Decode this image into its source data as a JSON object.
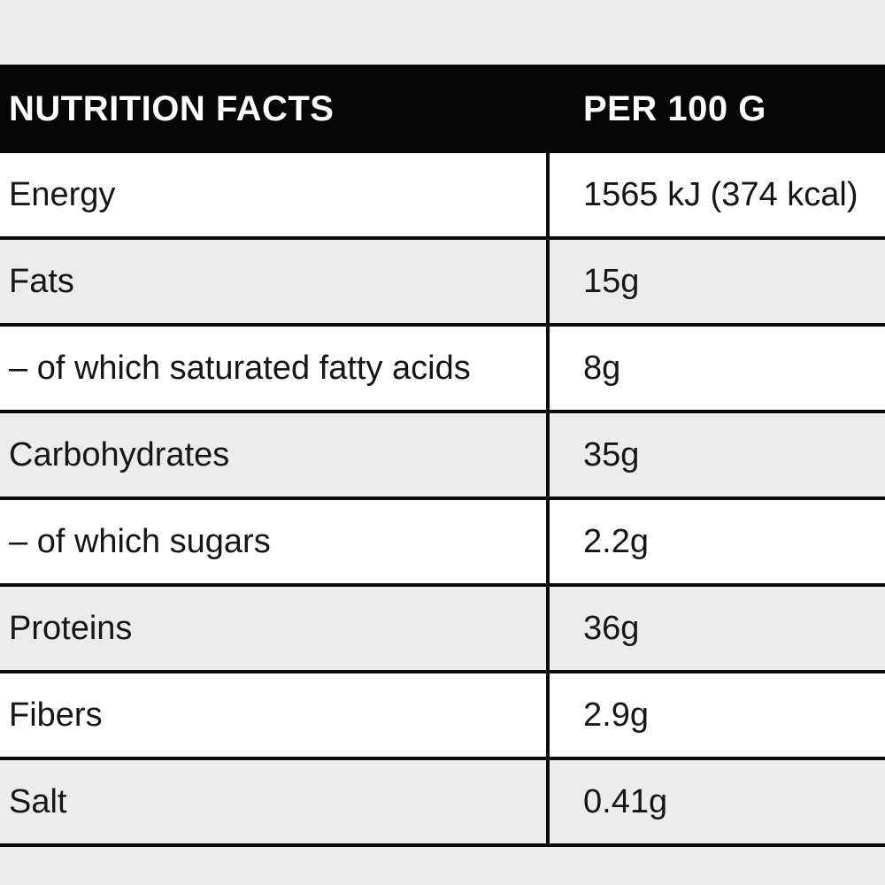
{
  "table": {
    "header": {
      "title": "NUTRITION FACTS",
      "column": "PER 100 G"
    },
    "rows": [
      {
        "label": "Energy",
        "value": "1565 kJ (374 kcal)"
      },
      {
        "label": "Fats",
        "value": "15g"
      },
      {
        "label": "– of which saturated fatty acids",
        "value": "8g"
      },
      {
        "label": "Carbohydrates",
        "value": "35g"
      },
      {
        "label": "– of which sugars",
        "value": "2.2g"
      },
      {
        "label": "Proteins",
        "value": "36g"
      },
      {
        "label": "Fibers",
        "value": "2.9g"
      },
      {
        "label": "Salt",
        "value": "0.41g"
      }
    ],
    "colors": {
      "header_bg": "#060606",
      "header_text": "#ffffff",
      "row_bg": "#ffffff",
      "row_alt_bg": "#ececec",
      "rule": "#0a0a0a",
      "text": "#161616"
    }
  }
}
